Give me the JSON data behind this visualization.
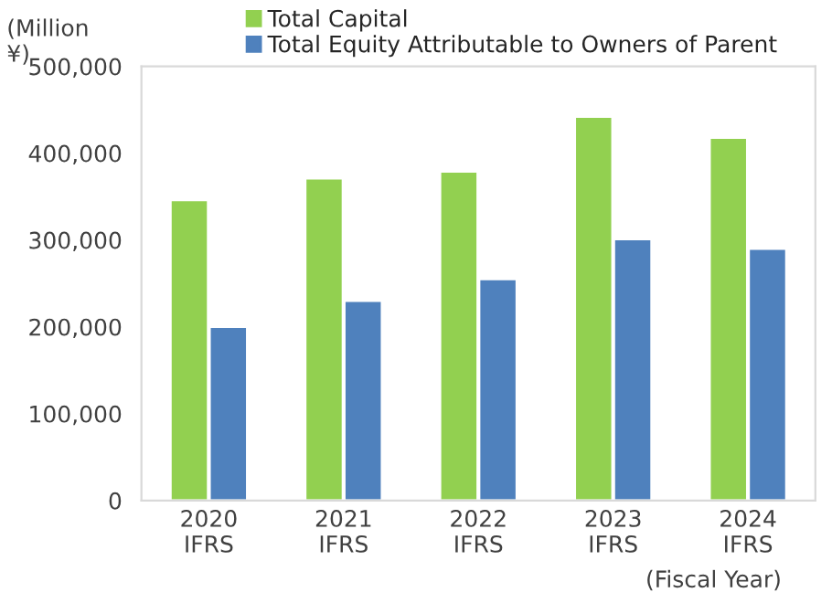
{
  "chart_data": {
    "type": "bar",
    "ylabel": "(Million\n¥)",
    "xlabel": "(Fiscal Year)",
    "categories": [
      "2020\nIFRS",
      "2021\nIFRS",
      "2022\nIFRS",
      "2023\nIFRS",
      "2024\nIFRS"
    ],
    "series": [
      {
        "name": "Total Capital",
        "color": "#92d050",
        "values": [
          346000,
          371000,
          379000,
          442000,
          418000
        ]
      },
      {
        "name": "Total Equity Attributable to Owners of Parent",
        "color": "#4f81bd",
        "values": [
          200000,
          230000,
          255000,
          301000,
          290000
        ]
      }
    ],
    "ylim": [
      0,
      500000
    ],
    "yticks": [
      0,
      {
        "value": 100000,
        "label": "100,000"
      },
      {
        "value": 200000,
        "label": "200,000"
      },
      {
        "value": 300000,
        "label": "300,000"
      },
      {
        "value": 400000,
        "label": "400,000"
      },
      {
        "value": 500000,
        "label": "500,000"
      }
    ],
    "grid": false,
    "legend": "top"
  }
}
